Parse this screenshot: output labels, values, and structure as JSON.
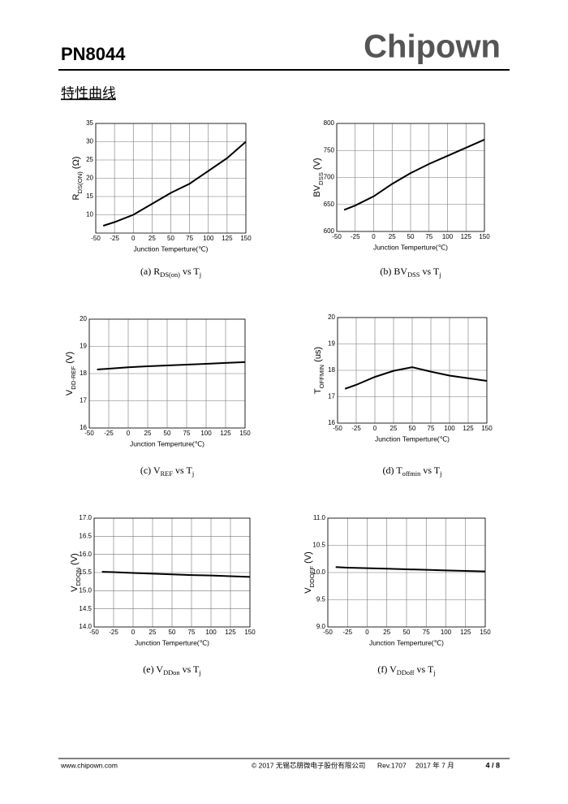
{
  "header": {
    "part": "PN8044",
    "brand": "Chipown",
    "section": "特性曲线"
  },
  "footer": {
    "site": "www.chipown.com",
    "copyright": "© 2017 无锡芯朋微电子股份有限公司",
    "rev": "Rev.1707",
    "date": "2017 年 7 月",
    "page": "4 / 8"
  },
  "chart_data": [
    {
      "type": "line",
      "ylabel": [
        "R",
        "DS(ON)",
        " (Ω)"
      ],
      "xlabel": "Junction Temperture(℃)",
      "caption": [
        "(a) R",
        "DS(on)",
        " vs T",
        "j"
      ],
      "x": [
        -40,
        -25,
        0,
        25,
        50,
        75,
        100,
        125,
        150
      ],
      "series": [
        {
          "color": "#000000",
          "values": [
            7,
            8,
            10,
            13,
            16,
            18.5,
            22,
            25.5,
            30
          ]
        }
      ],
      "xlim": [
        -50,
        150
      ],
      "xticks": [
        -50,
        -25,
        0,
        25,
        50,
        75,
        100,
        125,
        150
      ],
      "ylim": [
        5,
        35
      ],
      "yticks": [
        10,
        15,
        20,
        25,
        30,
        35
      ],
      "grid": true
    },
    {
      "type": "line",
      "ylabel": [
        "BV",
        "DSS",
        " (V)"
      ],
      "xlabel": "Junction Temperture(℃)",
      "caption": [
        "(b) BV",
        "DSS",
        " vs T",
        "j"
      ],
      "x": [
        -40,
        -25,
        0,
        25,
        50,
        75,
        100,
        125,
        150
      ],
      "series": [
        {
          "color": "#000000",
          "values": [
            640,
            648,
            665,
            688,
            708,
            725,
            740,
            755,
            770
          ]
        }
      ],
      "xlim": [
        -50,
        150
      ],
      "xticks": [
        -50,
        -25,
        0,
        25,
        50,
        75,
        100,
        125,
        150
      ],
      "ylim": [
        600,
        800
      ],
      "yticks": [
        600,
        650,
        700,
        750,
        800
      ],
      "grid": true
    },
    {
      "type": "line",
      "ylabel": [
        "V",
        "DD-REF",
        " (V)"
      ],
      "xlabel": "Junction Temperture(℃)",
      "caption": [
        "(c) V",
        "REF",
        " vs T",
        "j"
      ],
      "x": [
        -40,
        -25,
        0,
        25,
        50,
        75,
        100,
        125,
        150
      ],
      "series": [
        {
          "color": "#000000",
          "values": [
            18.15,
            18.18,
            18.23,
            18.27,
            18.3,
            18.33,
            18.36,
            18.39,
            18.42
          ]
        }
      ],
      "xlim": [
        -50,
        150
      ],
      "xticks": [
        -50,
        -25,
        0,
        25,
        50,
        75,
        100,
        125,
        150
      ],
      "ylim": [
        16,
        20
      ],
      "yticks": [
        16,
        17,
        18,
        19,
        20
      ],
      "grid": true
    },
    {
      "type": "line",
      "ylabel": [
        "T",
        "OFFMIN",
        " (us)"
      ],
      "xlabel": "Junction Temperture(℃)",
      "caption": [
        "(d) T",
        "offmin",
        " vs T",
        "j"
      ],
      "x": [
        -40,
        -25,
        0,
        25,
        50,
        75,
        100,
        125,
        150
      ],
      "series": [
        {
          "color": "#000000",
          "values": [
            17.3,
            17.45,
            17.75,
            17.98,
            18.12,
            17.95,
            17.8,
            17.7,
            17.6
          ]
        }
      ],
      "xlim": [
        -50,
        150
      ],
      "xticks": [
        -50,
        -25,
        0,
        25,
        50,
        75,
        100,
        125,
        150
      ],
      "ylim": [
        16,
        20
      ],
      "yticks": [
        16,
        17,
        18,
        19,
        20
      ],
      "grid": true
    },
    {
      "type": "line",
      "ylabel": [
        "V",
        "DDON",
        " (V)"
      ],
      "xlabel": "Junction Temperture(℃)",
      "caption": [
        "(e) V",
        "DDon",
        " vs T",
        "j"
      ],
      "x": [
        -40,
        -25,
        0,
        25,
        50,
        75,
        100,
        125,
        150
      ],
      "series": [
        {
          "color": "#000000",
          "values": [
            15.52,
            15.51,
            15.49,
            15.47,
            15.45,
            15.43,
            15.42,
            15.4,
            15.38
          ]
        }
      ],
      "xlim": [
        -50,
        150
      ],
      "xticks": [
        -50,
        -25,
        0,
        25,
        50,
        75,
        100,
        125,
        150
      ],
      "ylim": [
        14,
        17
      ],
      "yticks": [
        {
          "value": 14,
          "label": "14.0"
        },
        {
          "value": 14.5,
          "label": "14.5"
        },
        {
          "value": 15,
          "label": "15.0"
        },
        {
          "value": 15.5,
          "label": "15.5"
        },
        {
          "value": 16,
          "label": "16.0"
        },
        {
          "value": 16.5,
          "label": "16.5"
        },
        {
          "value": 17,
          "label": "17.0"
        }
      ],
      "grid": true
    },
    {
      "type": "line",
      "ylabel": [
        "V",
        "DDOFF",
        " (V)"
      ],
      "xlabel": "Junction Temperture(℃)",
      "caption": [
        "(f) V",
        "DDoff",
        " vs T",
        "j"
      ],
      "x": [
        -40,
        -25,
        0,
        25,
        50,
        75,
        100,
        125,
        150
      ],
      "series": [
        {
          "color": "#000000",
          "values": [
            10.1,
            10.09,
            10.08,
            10.07,
            10.06,
            10.05,
            10.04,
            10.03,
            10.02
          ]
        }
      ],
      "xlim": [
        -50,
        150
      ],
      "xticks": [
        -50,
        -25,
        0,
        25,
        50,
        75,
        100,
        125,
        150
      ],
      "ylim": [
        9,
        11
      ],
      "yticks": [
        {
          "value": 9,
          "label": "9.0"
        },
        {
          "value": 9.5,
          "label": "9.5"
        },
        {
          "value": 10,
          "label": "10.0"
        },
        {
          "value": 10.5,
          "label": "10.5"
        },
        {
          "value": 11,
          "label": "11.0"
        }
      ],
      "grid": true
    }
  ]
}
